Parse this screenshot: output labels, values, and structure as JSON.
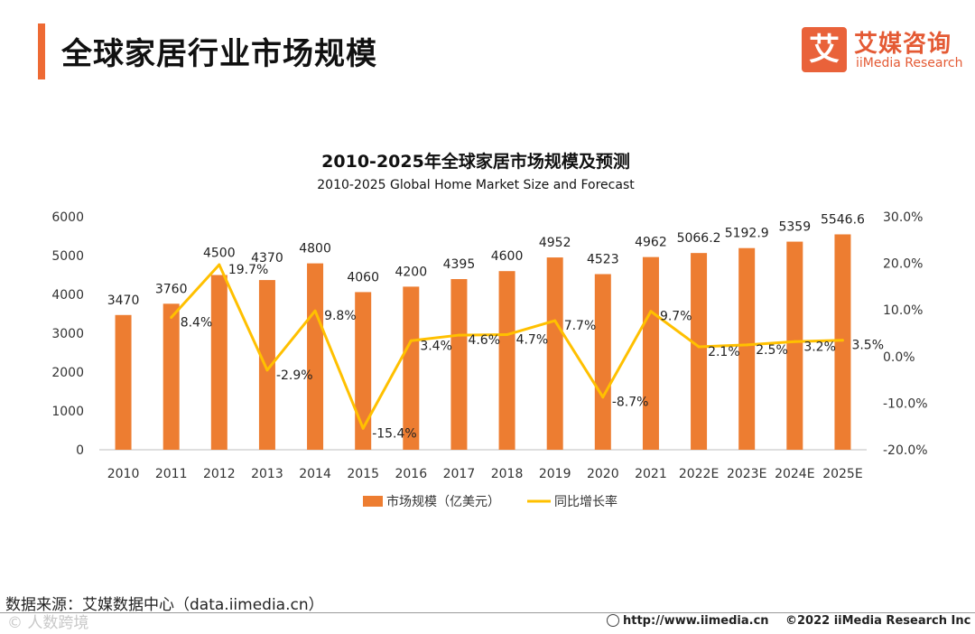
{
  "header": {
    "title": "全球家居行业市场规模",
    "logo_mark": "艾",
    "logo_cn": "艾媒咨询",
    "logo_en": "iiMedia Research"
  },
  "chart_data": {
    "type": "bar",
    "title": "2010-2025年全球家居市场规模及预测",
    "subtitle": "2010-2025 Global Home Market Size and Forecast",
    "categories": [
      "2010",
      "2011",
      "2012",
      "2013",
      "2014",
      "2015",
      "2016",
      "2017",
      "2018",
      "2019",
      "2020",
      "2021",
      "2022E",
      "2023E",
      "2024E",
      "2025E"
    ],
    "series": [
      {
        "name": "市场规模（亿美元）",
        "type": "bar",
        "axis": "left",
        "color": "#ed7d31",
        "values": [
          3470,
          3760,
          4500,
          4370,
          4800,
          4060,
          4200,
          4395,
          4600,
          4952,
          4523,
          4962,
          5066.2,
          5192.9,
          5359,
          5546.6
        ],
        "labels": [
          "3470",
          "3760",
          "4500",
          "4370",
          "4800",
          "4060",
          "4200",
          "4395",
          "4600",
          "4952",
          "4523",
          "4962",
          "5066.2",
          "5192.9",
          "5359",
          "5546.6"
        ]
      },
      {
        "name": "同比增长率",
        "type": "line",
        "axis": "right",
        "color": "#ffc000",
        "values": [
          null,
          8.4,
          19.7,
          -2.9,
          9.8,
          -15.4,
          3.4,
          4.6,
          4.7,
          7.7,
          -8.7,
          9.7,
          2.1,
          2.5,
          3.2,
          3.5
        ],
        "labels": [
          "",
          "8.4%",
          "19.7%",
          "-2.9%",
          "9.8%",
          "-15.4%",
          "3.4%",
          "4.6%",
          "4.7%",
          "7.7%",
          "-8.7%",
          "9.7%",
          "2.1%",
          "2.5%",
          "3.2%",
          "3.5%"
        ]
      }
    ],
    "y_left": {
      "min": 0,
      "max": 6000,
      "ticks": [
        "0",
        "1000",
        "2000",
        "3000",
        "4000",
        "5000",
        "6000"
      ]
    },
    "y_right": {
      "min": -20,
      "max": 30,
      "ticks": [
        "-20.0%",
        "-10.0%",
        "0.0%",
        "10.0%",
        "20.0%",
        "30.0%"
      ]
    },
    "grid": false,
    "legend_position": "bottom"
  },
  "footer": {
    "source": "数据来源：艾媒数据中心（data.iimedia.cn）",
    "watermark": "© 人数跨境",
    "url": "http://www.iimedia.cn",
    "copyright": "©2022  iiMedia Research  Inc"
  }
}
